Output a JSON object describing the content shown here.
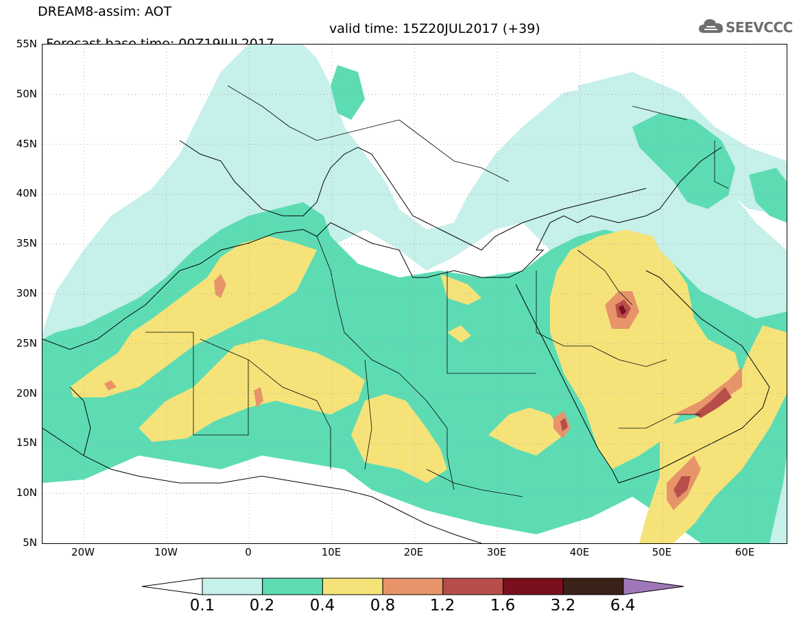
{
  "header": {
    "title": "DREAM8-assim: AOT",
    "forecast_base": "Forecast base time: 00Z19JUL2017",
    "valid_time": "valid time: 15Z20JUL2017 (+39)"
  },
  "logo": {
    "text": "SEEVCCC",
    "icon": "cloud-icon"
  },
  "map": {
    "lat_labels": [
      "55N",
      "50N",
      "45N",
      "40N",
      "35N",
      "30N",
      "25N",
      "20N",
      "15N",
      "10N",
      "5N"
    ],
    "lon_labels": [
      "20W",
      "10W",
      "0",
      "10E",
      "20E",
      "30E",
      "40E",
      "50E",
      "60E"
    ],
    "lat_range": [
      5,
      55
    ],
    "lon_range": [
      -25,
      65
    ],
    "grid": "dotted"
  },
  "colorbar": {
    "ticks": [
      "0.1",
      "0.2",
      "0.4",
      "0.8",
      "1.2",
      "1.6",
      "3.2",
      "6.4"
    ],
    "colors": [
      "#ffffff",
      "#c6f0ea",
      "#5ddcb4",
      "#f5e37a",
      "#e8946a",
      "#b84e4a",
      "#7a0f1e",
      "#3a2218",
      "#9f78ba"
    ]
  },
  "fields": {
    "aot_colors": {
      "c1": "#c6f0ea",
      "c2": "#5ddcb4",
      "c3": "#f5e37a",
      "c4": "#e8946a",
      "c5": "#b84e4a",
      "c6": "#7a0f1e"
    }
  }
}
